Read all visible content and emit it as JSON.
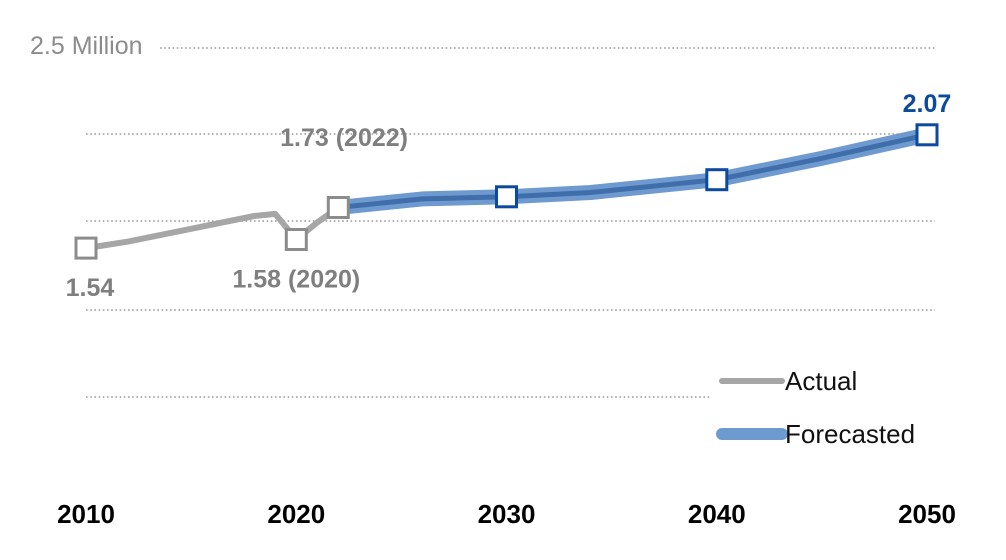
{
  "chart_data": {
    "type": "line",
    "title": "",
    "xlabel": "",
    "ylabel": "",
    "xlim": [
      2010,
      2050
    ],
    "ylim": [
      0,
      2.5
    ],
    "x_ticks": [
      "2010",
      "2020",
      "2030",
      "2040",
      "2050"
    ],
    "y_top_label": "2.5 Million",
    "grid": true,
    "legend_position": "bottom-right",
    "series": [
      {
        "name": "Actual",
        "color": "#a6a6a6",
        "x": [
          2010,
          2012,
          2014,
          2016,
          2018,
          2019,
          2020,
          2021,
          2022
        ],
        "y": [
          1.54,
          1.57,
          1.61,
          1.65,
          1.69,
          1.7,
          1.58,
          1.66,
          1.73
        ]
      },
      {
        "name": "Forecasted",
        "color": "#6f9ad0",
        "x": [
          2022,
          2024,
          2026,
          2030,
          2034,
          2040,
          2045,
          2050
        ],
        "y": [
          1.73,
          1.75,
          1.77,
          1.78,
          1.8,
          1.86,
          1.96,
          2.07
        ]
      }
    ],
    "markers": [
      {
        "x": 2010,
        "y": 1.54,
        "series": "Actual"
      },
      {
        "x": 2020,
        "y": 1.58,
        "series": "Actual"
      },
      {
        "x": 2022,
        "y": 1.73,
        "series": "Actual"
      },
      {
        "x": 2030,
        "y": 1.78,
        "series": "Forecasted"
      },
      {
        "x": 2040,
        "y": 1.86,
        "series": "Forecasted"
      },
      {
        "x": 2050,
        "y": 2.07,
        "series": "Forecasted"
      }
    ],
    "annotations": [
      {
        "text": "1.54",
        "x": 2010,
        "y": 1.54,
        "color": "#7f7f7f"
      },
      {
        "text": "1.58 (2020)",
        "x": 2020,
        "y": 1.58,
        "color": "#7f7f7f"
      },
      {
        "text": "1.73 (2022)",
        "x": 2022,
        "y": 1.73,
        "color": "#7f7f7f"
      },
      {
        "text": "2.07",
        "x": 2050,
        "y": 2.07,
        "color": "#0b4a9e"
      }
    ],
    "colors": {
      "actual_line": "#a6a6a6",
      "actual_marker": "#8c8c8c",
      "forecast_line_outer": "#6f9ad0",
      "forecast_line_inner": "#3f6eab",
      "forecast_marker": "#0b4a9e"
    }
  }
}
